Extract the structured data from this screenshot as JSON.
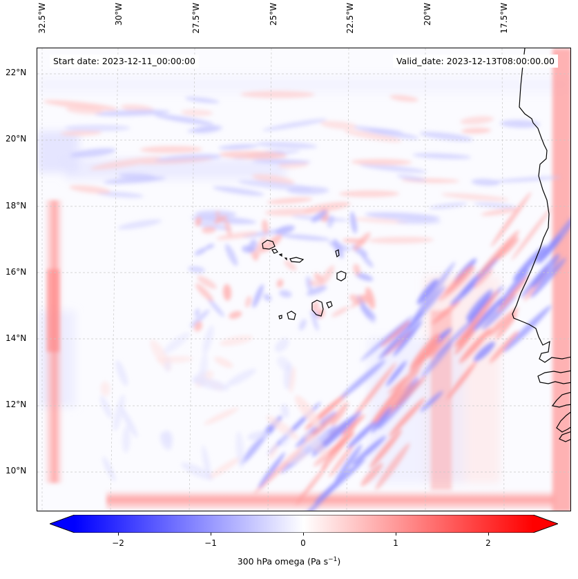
{
  "map": {
    "start_date_text": "Start date: 2023-12-11_00:00:00",
    "valid_date_text": "Valid_date: 2023-12-13T08:00:00.00",
    "longitude_ticks": [
      "32.5°W",
      "30°W",
      "27.5°W",
      "25°W",
      "22.5°W",
      "20°W",
      "17.5°W"
    ],
    "latitude_ticks": [
      "22°N",
      "20°N",
      "18°N",
      "16°N",
      "14°N",
      "12°N",
      "10°N"
    ],
    "field": "300 hPa omega",
    "colors": {
      "negative": "#0000ff",
      "zero": "#ffffff",
      "positive": "#ff0000",
      "coastline": "#000000",
      "gridline": "#c8c8c8"
    }
  },
  "colorbar": {
    "ticks": [
      "−2",
      "−1",
      "0",
      "1",
      "2"
    ],
    "range": [
      -2.75,
      2.75
    ],
    "label_text": "300 hPa omega (Pa s",
    "label_exponent": "−1",
    "label_close": ")"
  }
}
